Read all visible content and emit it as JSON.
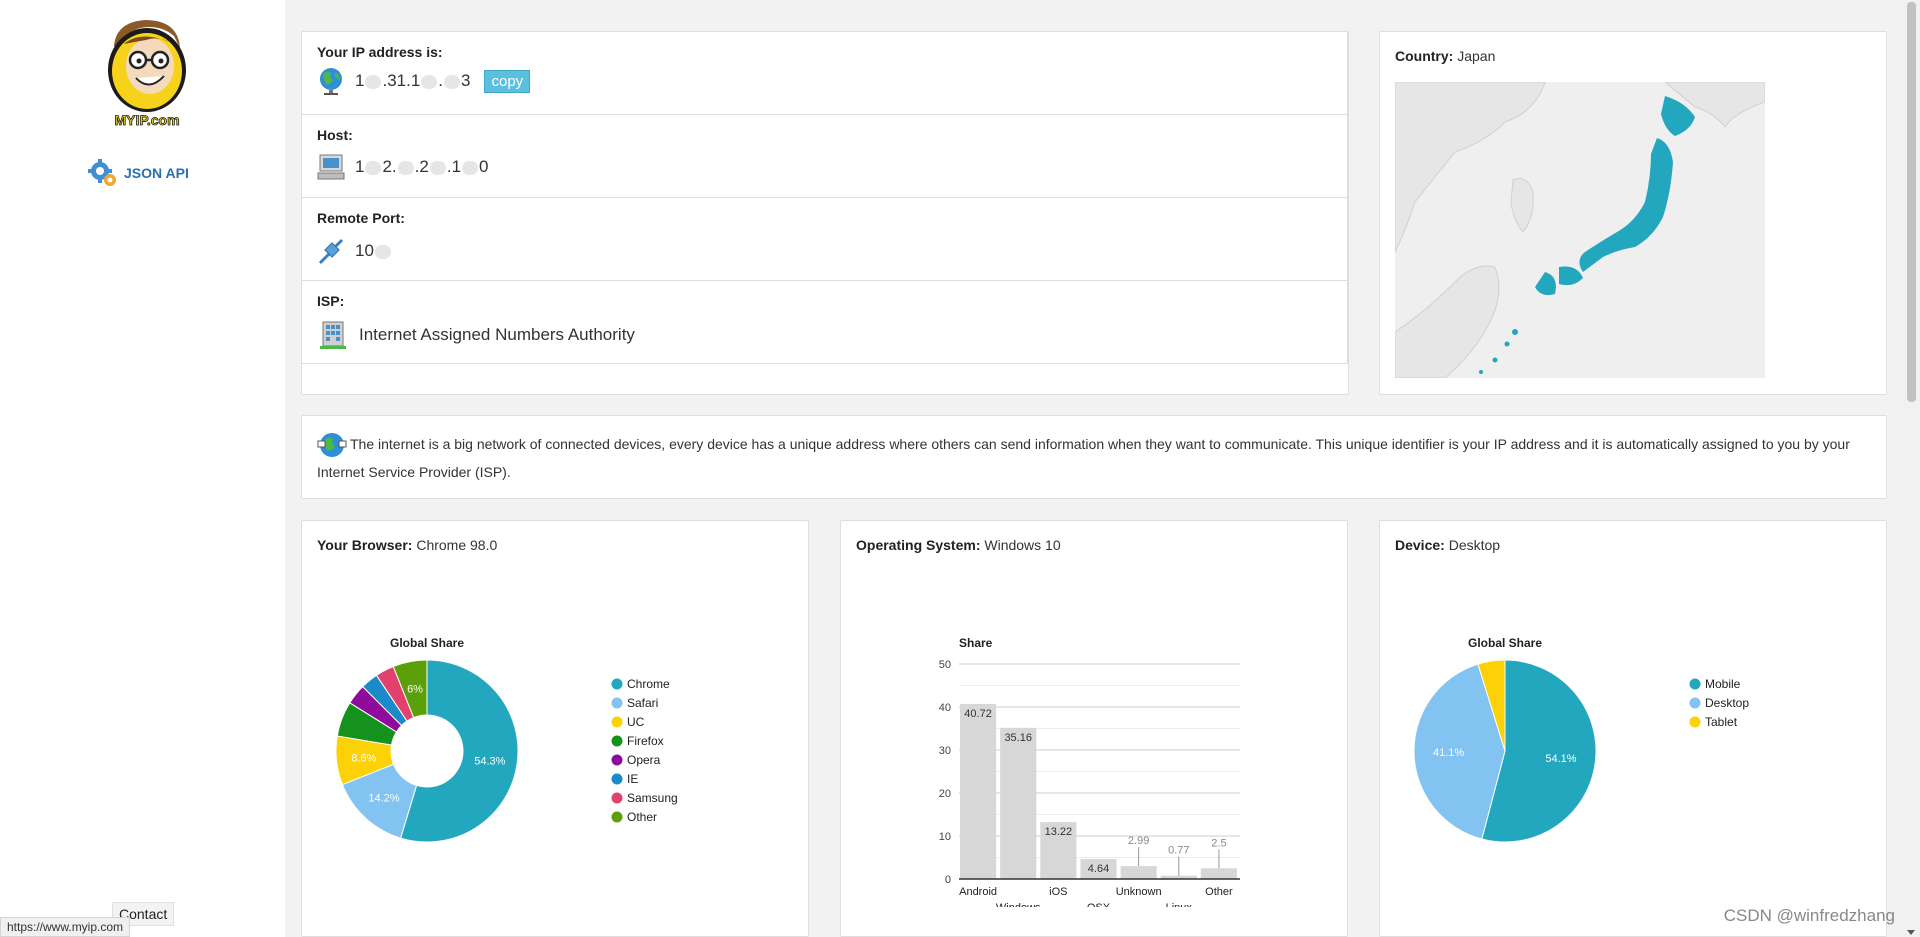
{
  "sidebar": {
    "logo_text": "MYIP.com",
    "json_api_label": "JSON API",
    "contact_label": "Contact",
    "status_url": "https://www.myip.com"
  },
  "ip_panel": {
    "ip": {
      "label": "Your IP address is:",
      "value_parts": [
        "1",
        ".31.1",
        ".",
        "3"
      ],
      "copy_label": "copy"
    },
    "host": {
      "label": "Host:",
      "value_parts": [
        "1",
        "2.",
        ".2",
        ".1",
        "0"
      ]
    },
    "port": {
      "label": "Remote Port:",
      "value_parts": [
        "10"
      ]
    },
    "isp": {
      "label": "ISP:",
      "value": "Internet Assigned Numbers Authority"
    }
  },
  "country": {
    "label": "Country:",
    "value": "Japan"
  },
  "info_text": "The internet is a big network of connected devices, every device has a unique address where others can send information when they want to communicate. This unique identifier is your IP address and it is automatically assigned to you by your Internet Service Provider (ISP).",
  "browser": {
    "label": "Your Browser:",
    "value": "Chrome 98.0"
  },
  "os": {
    "label": "Operating System:",
    "value": "Windows 10"
  },
  "device": {
    "label": "Device:",
    "value": "Desktop"
  },
  "watermark": "CSDN @winfredzhang",
  "colors": {
    "accent": "#22a7bf",
    "light_blue": "#82c3f2",
    "yellow": "#fcd106"
  },
  "chart_data": [
    {
      "type": "pie",
      "variant": "donut",
      "title": "Global Share",
      "legend_position": "right",
      "categories": [
        "Chrome",
        "Safari",
        "UC",
        "Firefox",
        "Opera",
        "IE",
        "Samsung",
        "Other"
      ],
      "values": [
        54.3,
        14.2,
        8.6,
        6.2,
        3.6,
        3.1,
        3.3,
        6.0
      ],
      "slice_labels": [
        "54.3%",
        "14.2%",
        "8.6%",
        "",
        "",
        "",
        "",
        "6%"
      ],
      "colors": [
        "#22a7bf",
        "#82c3f2",
        "#fcd106",
        "#15921e",
        "#8f0b9c",
        "#1a8ac9",
        "#e2416e",
        "#5ba00a"
      ]
    },
    {
      "type": "bar",
      "title": "Share",
      "categories": [
        "Android",
        "Windows",
        "iOS",
        "OSX",
        "Unknown",
        "Linux",
        "Other"
      ],
      "values": [
        40.72,
        35.16,
        13.22,
        4.64,
        2.99,
        0.77,
        2.5
      ],
      "value_labels": [
        "40.72",
        "35.16",
        "13.22",
        "4.64",
        "2.99",
        "0.77",
        "2.5"
      ],
      "ylim": [
        0,
        50
      ],
      "yticks": [
        "0",
        "10",
        "20",
        "30",
        "40",
        "50"
      ],
      "grid": true,
      "color": "#d7d7d7"
    },
    {
      "type": "pie",
      "title": "Global Share",
      "legend_position": "right",
      "categories": [
        "Mobile",
        "Desktop",
        "Tablet"
      ],
      "values": [
        54.1,
        41.1,
        4.8
      ],
      "slice_labels": [
        "54.1%",
        "41.1%",
        ""
      ],
      "colors": [
        "#22a7bf",
        "#82c3f2",
        "#fcd106"
      ]
    }
  ]
}
